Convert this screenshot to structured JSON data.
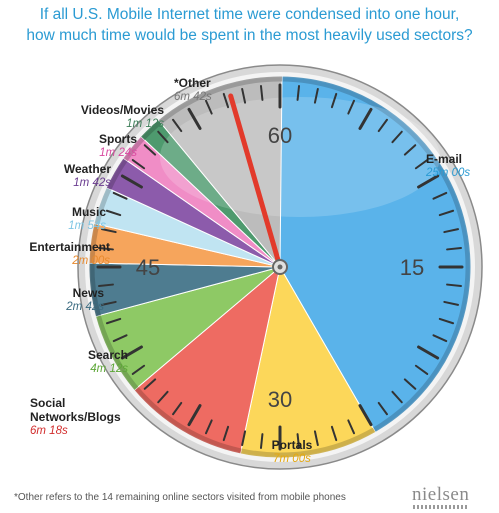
{
  "title_line1": "If all U.S. Mobile Internet time were condensed into one hour,",
  "title_line2": "how much time  would be spent in the most heavily used sectors?",
  "footnote": "*Other refers to the 14 remaining online sectors visited from mobile phones",
  "brand": "nielsen",
  "chart_data": {
    "type": "pie",
    "title": "If all U.S. Mobile Internet time were condensed into one hour, how much time  would be spent in the most heavily used sectors?",
    "unit": "minutes",
    "total": 60,
    "dial_numbers": [
      "60",
      "15",
      "30",
      "45"
    ],
    "slices": [
      {
        "name": "E-mail",
        "label": "25m 00s",
        "value": 25.0,
        "color": "#5ab3ea"
      },
      {
        "name": "Portals",
        "label": "7m 00s",
        "value": 7.0,
        "color": "#fcd75a"
      },
      {
        "name": "Social Networks/Blogs",
        "label": "6m 18s",
        "value": 6.3,
        "color": "#ee6b62"
      },
      {
        "name": "Search",
        "label": "4m 12s",
        "value": 4.2,
        "color": "#8ec965"
      },
      {
        "name": "News",
        "label": "2m 42s",
        "value": 2.7,
        "color": "#4e7c90"
      },
      {
        "name": "Entertainment",
        "label": "2m 00s",
        "value": 2.0,
        "color": "#f6a55c"
      },
      {
        "name": "Music",
        "label": "1m 54s",
        "value": 1.9,
        "color": "#c0e4f2"
      },
      {
        "name": "Weather",
        "label": "1m 42s",
        "value": 1.7,
        "color": "#8c5bab"
      },
      {
        "name": "Sports",
        "label": "1m 24s",
        "value": 1.4,
        "color": "#f08dc6"
      },
      {
        "name": "Videos/Movies",
        "label": "1m 12s",
        "value": 1.2,
        "color": "#4e9a6e"
      },
      {
        "name": "*Other",
        "label": "6m 42s",
        "value": 6.7,
        "color": "#bcbcbc"
      }
    ],
    "label_colors": {
      "E-mail": "#2b9bd3",
      "Portals": "#e6a80e",
      "Social Networks/Blogs": "#d22e2e",
      "Search": "#5da737",
      "News": "#3b6b80",
      "Entertainment": "#e88a2e",
      "Music": "#7fc6e4",
      "Weather": "#6b3d91",
      "Sports": "#d94aa0",
      "Videos/Movies": "#3f7f5a",
      "*Other": "#777777"
    }
  }
}
